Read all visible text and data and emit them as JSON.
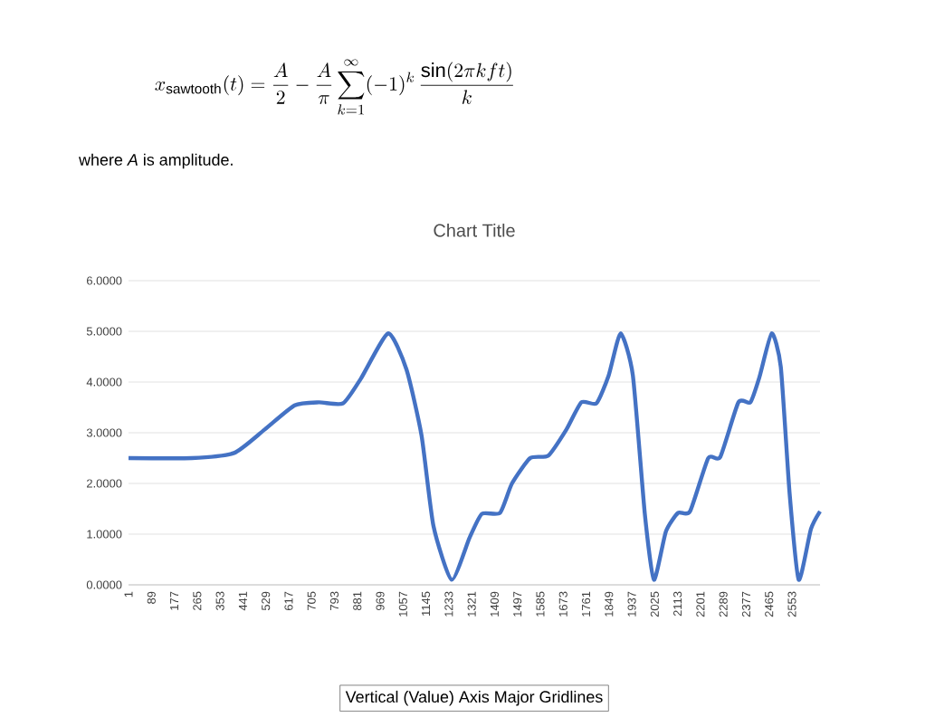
{
  "chart_data": {
    "type": "line",
    "title": "Chart Title",
    "annotations": [
      "x_{\\mathrm{sawtooth}}(t)=\\frac{A}{2}-\\frac{A}{\\pi}\\sum_{k=1}^{\\infty}(-1)^{k}\\,\\frac{\\sin(2\\pi k f t)}{k}",
      "where *A* is amplitude.",
      "Vertical (Value) Axis Major Gridlines"
    ],
    "x": [
      1,
      245,
      407,
      524,
      640,
      733,
      826,
      895,
      1000,
      1070,
      1128,
      1174,
      1244,
      1313,
      1360,
      1430,
      1476,
      1546,
      1616,
      1685,
      1743,
      1801,
      1848,
      1894,
      1941,
      1987,
      2022,
      2068,
      2115,
      2161,
      2231,
      2277,
      2347,
      2393,
      2428,
      2475,
      2510,
      2544,
      2579,
      2626,
      2661
    ],
    "series": [
      {
        "color": "#4472c4",
        "values": [
          2.5,
          2.5,
          2.6,
          3.06,
          3.54,
          3.6,
          3.58,
          4.07,
          4.96,
          4.25,
          2.95,
          1.16,
          0.1,
          0.93,
          1.4,
          1.42,
          2.0,
          2.5,
          2.55,
          3.06,
          3.6,
          3.58,
          4.13,
          4.96,
          4.13,
          1.4,
          0.1,
          1.05,
          1.42,
          1.45,
          2.5,
          2.52,
          3.6,
          3.6,
          4.1,
          4.96,
          4.3,
          1.8,
          0.1,
          1.1,
          1.45
        ]
      }
    ],
    "xlim": [
      1,
      2661
    ],
    "ylim": [
      0,
      6
    ],
    "xticks": [
      1,
      89,
      177,
      265,
      353,
      441,
      529,
      617,
      705,
      793,
      881,
      969,
      1057,
      1145,
      1233,
      1321,
      1409,
      1497,
      1585,
      1673,
      1761,
      1849,
      1937,
      2025,
      2113,
      2201,
      2289,
      2377,
      2465,
      2553
    ],
    "yticks": [
      {
        "value": 0,
        "label": "0.0000"
      },
      {
        "value": 1,
        "label": "1.0000"
      },
      {
        "value": 2,
        "label": "2.0000"
      },
      {
        "value": 3,
        "label": "3.0000"
      },
      {
        "value": 4,
        "label": "4.0000"
      },
      {
        "value": 5,
        "label": "5.0000"
      },
      {
        "value": 6,
        "label": "6.0000"
      }
    ],
    "grid": "y",
    "marker": "none",
    "line_style": "solid"
  }
}
